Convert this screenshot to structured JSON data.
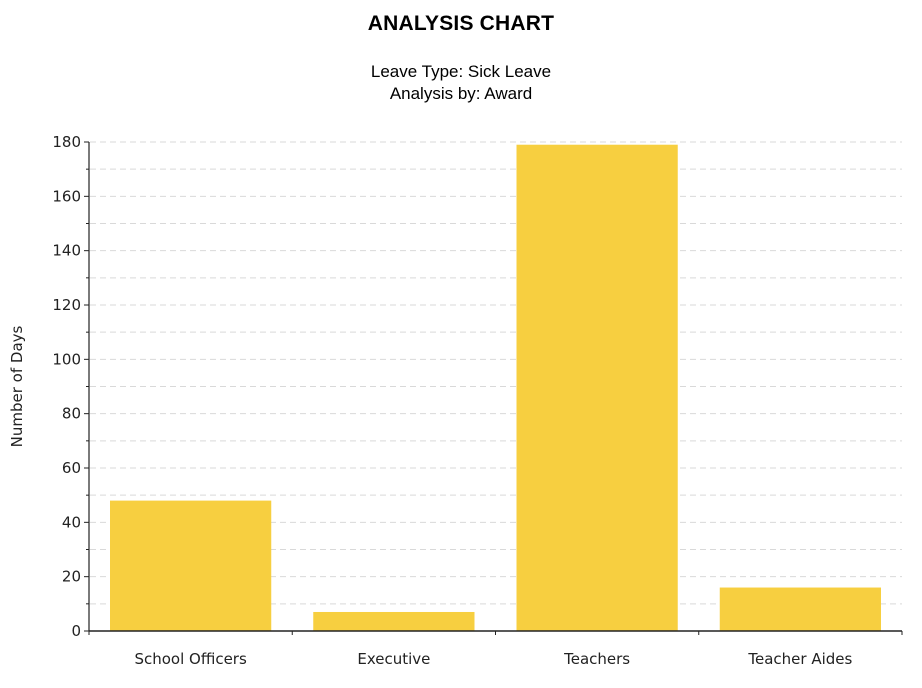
{
  "chart_data": {
    "type": "bar",
    "title": "ANALYSIS CHART",
    "subtitle": [
      "Leave Type: Sick Leave",
      "Analysis by: Award"
    ],
    "xlabel": "",
    "ylabel": "Number of Days",
    "categories": [
      "School Officers",
      "Executive",
      "Teachers",
      "Teacher Aides"
    ],
    "values": [
      48,
      7,
      179,
      16
    ],
    "ylim": [
      0,
      180
    ],
    "yticks": [
      0,
      20,
      40,
      60,
      80,
      100,
      120,
      140,
      160,
      180
    ],
    "grid": true,
    "legend": "none",
    "bar_color": "#f7cf40"
  }
}
